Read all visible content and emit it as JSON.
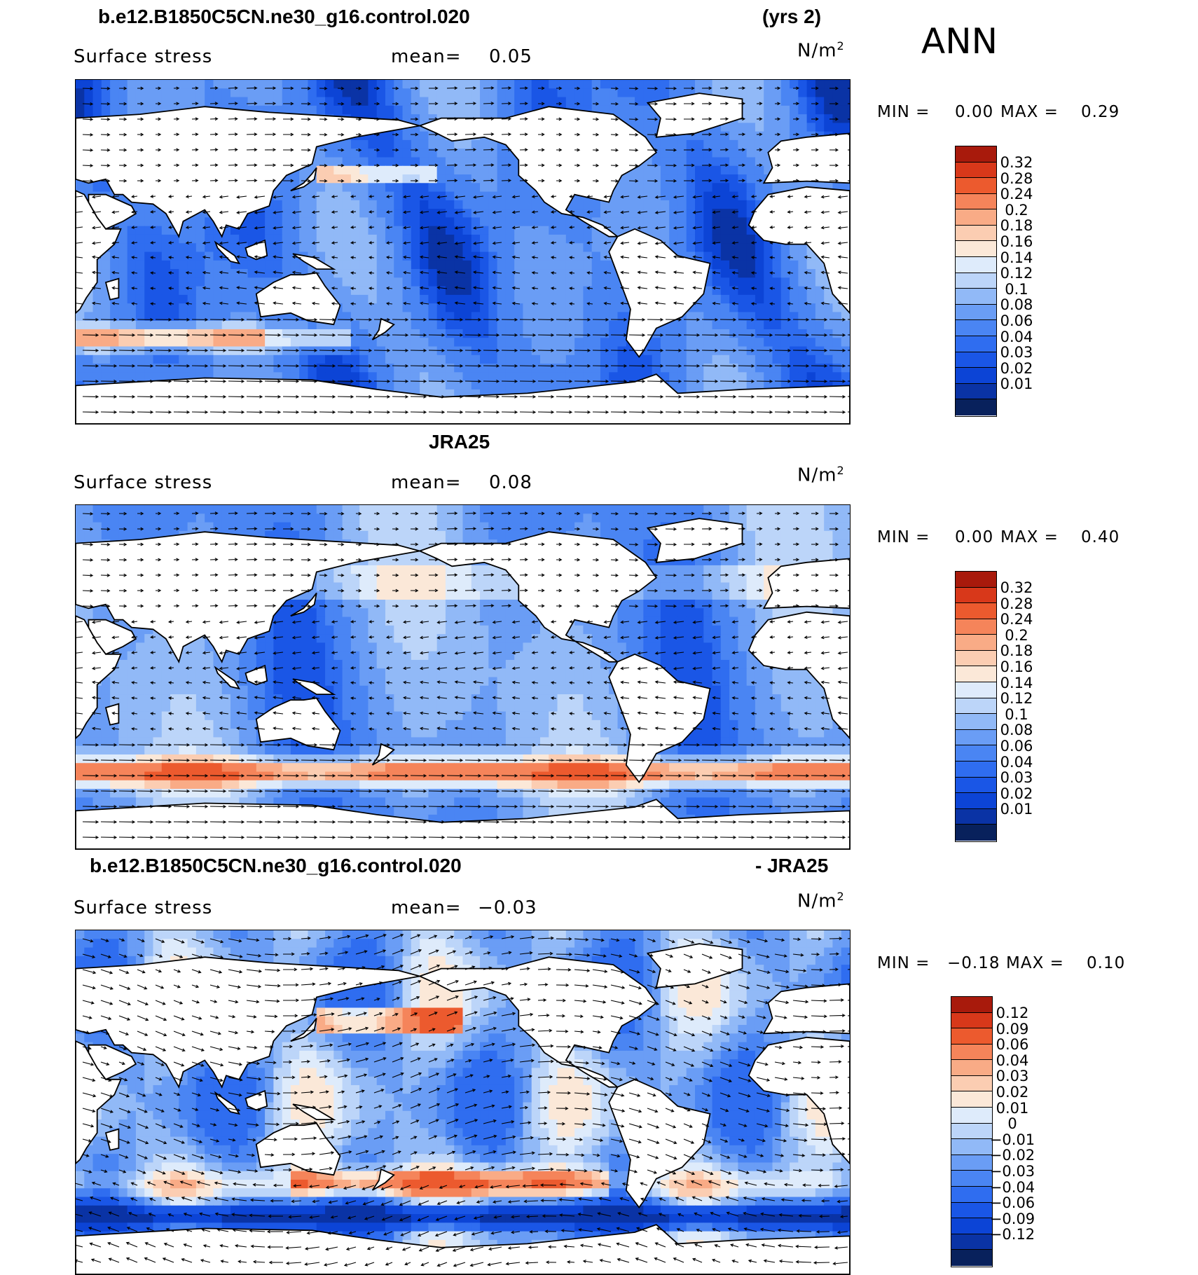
{
  "season": "ANN",
  "palette_17": [
    "#08215c",
    "#0a33a5",
    "#0c44d6",
    "#1a56e6",
    "#2f6df0",
    "#4a85f3",
    "#6a9df5",
    "#91b9f7",
    "#bcd5f9",
    "#deebfb",
    "#fbe8d8",
    "#fbcdb2",
    "#f9ab86",
    "#f5845a",
    "#ec5a2e",
    "#d8381a",
    "#a81a0c"
  ],
  "palette_19": [
    "#08215c",
    "#0a33a5",
    "#0c44d6",
    "#1a56e6",
    "#2f6df0",
    "#4a85f3",
    "#6a9df5",
    "#91b9f7",
    "#bcd5f9",
    "#deebfb",
    "#fcf3e8",
    "#fbe8d8",
    "#fbcdb2",
    "#f9ab86",
    "#f5845a",
    "#ec5a2e",
    "#d8381a",
    "#b52212",
    "#8a110a"
  ],
  "panels": [
    {
      "title_left": "b.e12.B1850C5CN.ne30_g16.control.020",
      "title_right": "(yrs 2)",
      "field": "Surface stress",
      "mean_label": "mean=",
      "mean_value": "0.05",
      "unit": "N/m",
      "unit_exp": "2",
      "min_label": "MIN =",
      "min_value": "0.00",
      "max_label": "MAX =",
      "max_value": "0.29"
    },
    {
      "title_left": "JRA25",
      "title_right": "",
      "field": "Surface stress",
      "mean_label": "mean=",
      "mean_value": "0.08",
      "unit": "N/m",
      "unit_exp": "2",
      "min_label": "MIN =",
      "min_value": "0.00",
      "max_label": "MAX =",
      "max_value": "0.40"
    },
    {
      "title_left": "b.e12.B1850C5CN.ne30_g16.control.020",
      "title_right": "- JRA25",
      "field": "Surface stress",
      "mean_label": "mean=",
      "mean_value": "−0.03",
      "unit": "N/m",
      "unit_exp": "2",
      "min_label": "MIN =",
      "min_value": "−0.18",
      "max_label": "MAX =",
      "max_value": "0.10"
    }
  ],
  "chart_data": [
    {
      "type": "heatmap",
      "title": "b.e12.B1850C5CN.ne30_g16.control.020 (yrs 2)",
      "field": "Surface stress",
      "units": "N/m2",
      "mean": 0.05,
      "min": 0.0,
      "max": 0.29,
      "colorbar_levels": [
        "0.32",
        "0.28",
        "0.24",
        "0.2",
        "0.18",
        "0.16",
        "0.14",
        "0.12",
        "0.1",
        "0.08",
        "0.06",
        "0.04",
        "0.03",
        "0.02",
        "0.01"
      ],
      "overlay": "vector arrows (wind stress)"
    },
    {
      "type": "heatmap",
      "title": "JRA25",
      "field": "Surface stress",
      "units": "N/m2",
      "mean": 0.08,
      "min": 0.0,
      "max": 0.4,
      "colorbar_levels": [
        "0.32",
        "0.28",
        "0.24",
        "0.2",
        "0.18",
        "0.16",
        "0.14",
        "0.12",
        "0.1",
        "0.08",
        "0.06",
        "0.04",
        "0.03",
        "0.02",
        "0.01"
      ],
      "overlay": "vector arrows (wind stress)"
    },
    {
      "type": "heatmap",
      "title": "b.e12.B1850C5CN.ne30_g16.control.020 - JRA25",
      "field": "Surface stress",
      "units": "N/m2",
      "mean": -0.03,
      "min": -0.18,
      "max": 0.1,
      "colorbar_levels": [
        "0.12",
        "0.09",
        "0.06",
        "0.04",
        "0.03",
        "0.02",
        "0.01",
        "0",
        "−0.01",
        "−0.02",
        "−0.03",
        "−0.04",
        "−0.06",
        "−0.09",
        "−0.12"
      ],
      "overlay": "vector arrows (wind stress difference)"
    }
  ]
}
